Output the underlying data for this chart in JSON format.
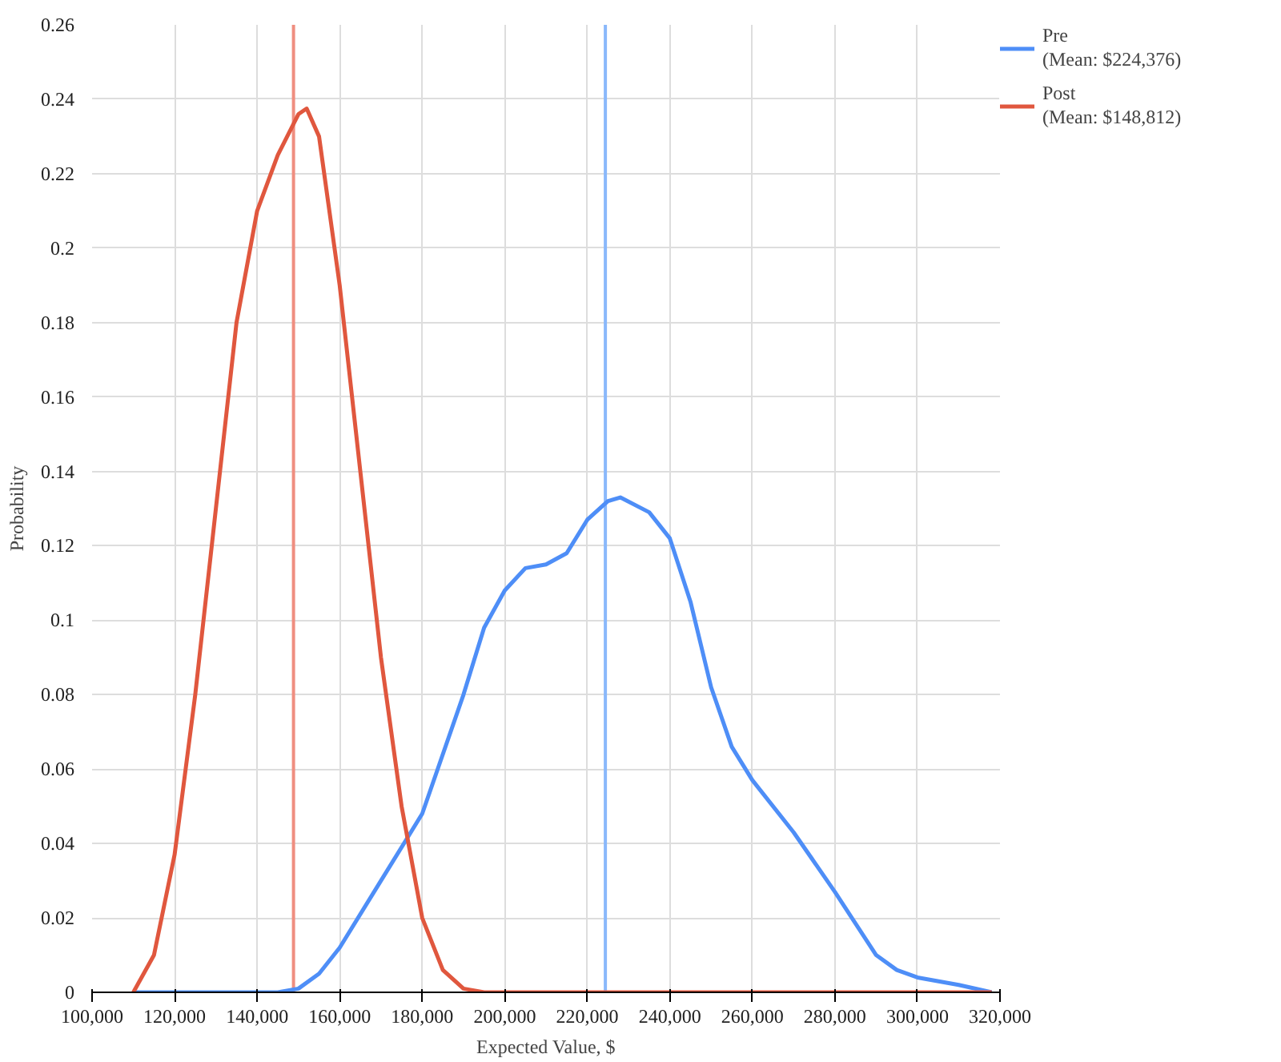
{
  "chart_data": {
    "type": "line",
    "xlabel": "Expected Value, $",
    "ylabel": "Probability",
    "series": [
      {
        "name": "Pre\n(Mean: $224,376)",
        "color": "#4e8ef7",
        "x": [
          110000,
          145000,
          150000,
          155000,
          160000,
          170000,
          180000,
          190000,
          195000,
          200000,
          205000,
          210000,
          215000,
          220000,
          225000,
          228000,
          235000,
          240000,
          245000,
          250000,
          255000,
          260000,
          270000,
          280000,
          290000,
          295000,
          300000,
          310000,
          318000
        ],
        "values": [
          0,
          0,
          0.001,
          0.005,
          0.012,
          0.03,
          0.048,
          0.08,
          0.098,
          0.108,
          0.114,
          0.115,
          0.118,
          0.127,
          0.132,
          0.133,
          0.129,
          0.122,
          0.105,
          0.082,
          0.066,
          0.057,
          0.043,
          0.027,
          0.01,
          0.006,
          0.004,
          0.002,
          0
        ]
      },
      {
        "name": "Post\n(Mean: $148,812)",
        "color": "#e0573e",
        "x": [
          110000,
          115000,
          120000,
          125000,
          130000,
          135000,
          140000,
          145000,
          150000,
          152000,
          155000,
          160000,
          165000,
          170000,
          175000,
          180000,
          185000,
          190000,
          195000,
          318000
        ],
        "values": [
          0,
          0.01,
          0.037,
          0.08,
          0.13,
          0.18,
          0.21,
          0.225,
          0.236,
          0.2375,
          0.23,
          0.19,
          0.14,
          0.09,
          0.05,
          0.02,
          0.006,
          0.001,
          0,
          0
        ]
      }
    ],
    "ref_lines": [
      {
        "axis": "x",
        "value": 224376,
        "color": "#8ab8fb"
      },
      {
        "axis": "x",
        "value": 148812,
        "color": "#ef8e80"
      }
    ],
    "xlim": [
      100000,
      320000
    ],
    "xticks": [
      {
        "value": 100000,
        "label": "100,000"
      },
      {
        "value": 120000,
        "label": "120,000"
      },
      {
        "value": 140000,
        "label": "140,000"
      },
      {
        "value": 160000,
        "label": "160,000"
      },
      {
        "value": 180000,
        "label": "180,000"
      },
      {
        "value": 200000,
        "label": "200,000"
      },
      {
        "value": 220000,
        "label": "220,000"
      },
      {
        "value": 240000,
        "label": "240,000"
      },
      {
        "value": 260000,
        "label": "260,000"
      },
      {
        "value": 280000,
        "label": "280,000"
      },
      {
        "value": 300000,
        "label": "300,000"
      },
      {
        "value": 320000,
        "label": "320,000"
      }
    ],
    "ylim": [
      0,
      0.26
    ],
    "yticks": [
      0,
      0.02,
      0.04,
      0.06,
      0.08,
      0.1,
      0.12,
      0.14,
      0.16,
      0.18,
      0.2,
      0.22,
      0.24,
      0.26
    ],
    "grid": true,
    "legend": "top right",
    "line_style": "solid",
    "marker": "none"
  }
}
